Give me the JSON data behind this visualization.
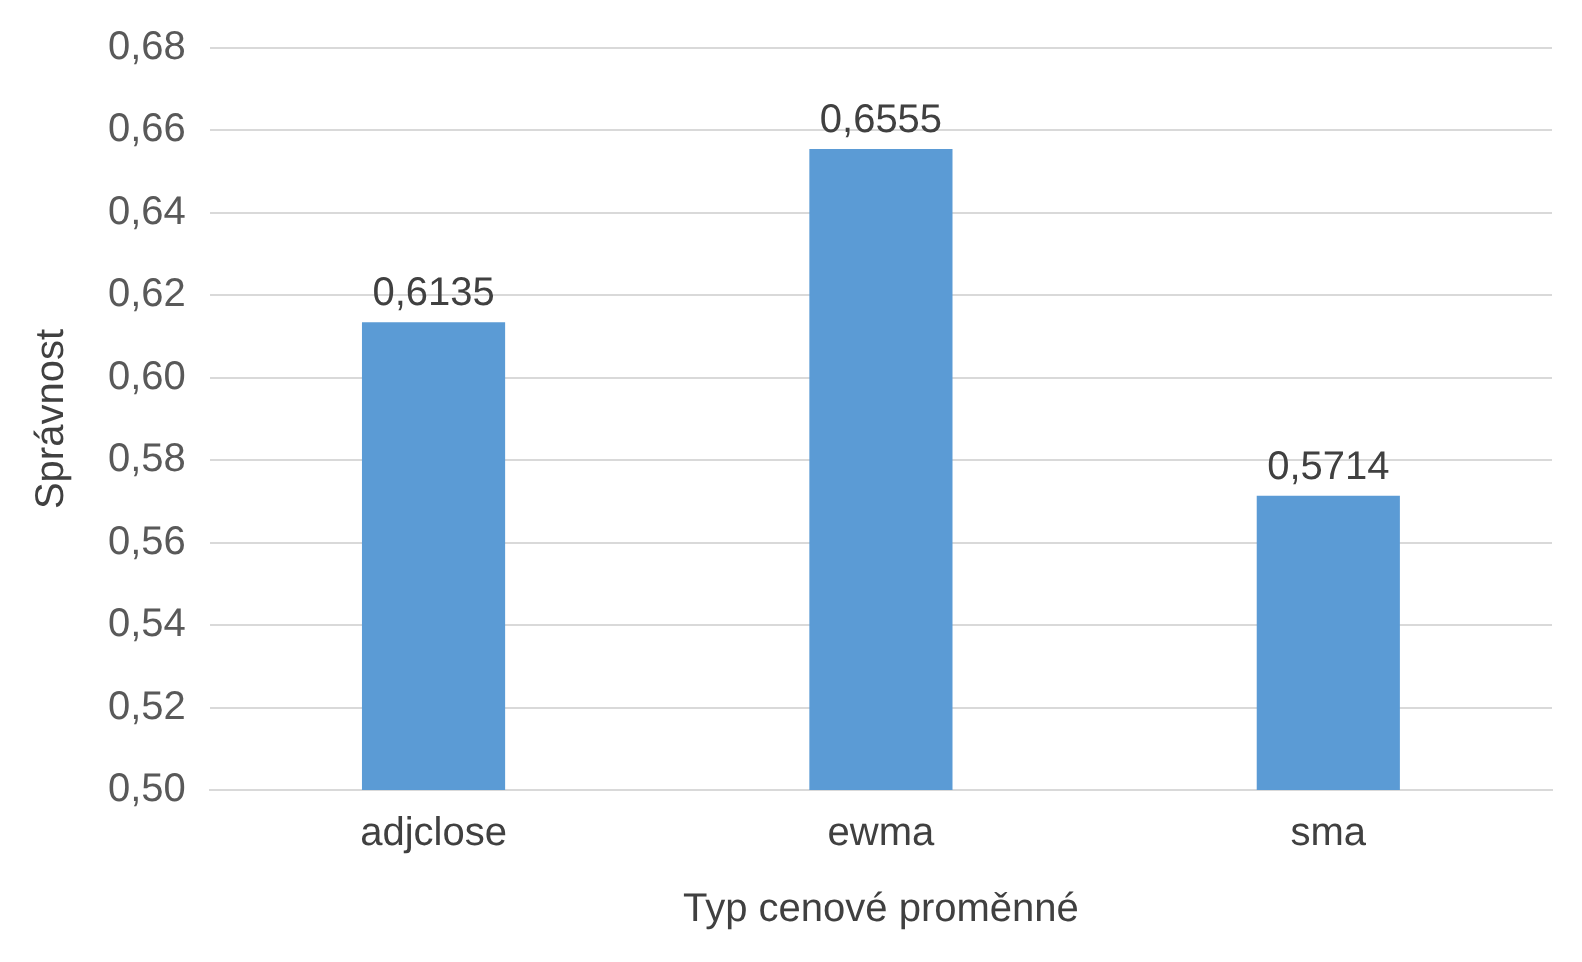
{
  "chart_data": {
    "type": "bar",
    "xlabel": "Typ cenové proměnné",
    "ylabel": "Správnost",
    "categories": [
      "adjclose",
      "ewma",
      "sma"
    ],
    "values": [
      0.6135,
      0.6555,
      0.5714
    ],
    "value_labels": [
      "0,6135",
      "0,6555",
      "0,5714"
    ],
    "color": "#5b9bd5",
    "ylim": [
      0.5,
      0.68
    ],
    "yticks": [
      {
        "value": 0.5,
        "label": "0,50"
      },
      {
        "value": 0.52,
        "label": "0,52"
      },
      {
        "value": 0.54,
        "label": "0,54"
      },
      {
        "value": 0.56,
        "label": "0,56"
      },
      {
        "value": 0.58,
        "label": "0,58"
      },
      {
        "value": 0.6,
        "label": "0,60"
      },
      {
        "value": 0.62,
        "label": "0,62"
      },
      {
        "value": 0.64,
        "label": "0,64"
      },
      {
        "value": 0.66,
        "label": "0,66"
      },
      {
        "value": 0.68,
        "label": "0,68"
      }
    ],
    "grid": "y",
    "legend": false
  }
}
